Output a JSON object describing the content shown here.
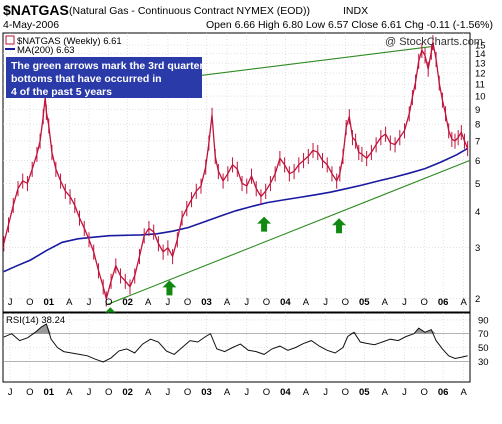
{
  "header": {
    "symbol": "$NATGAS",
    "description": "(Natural Gas - Continuous Contract NYMEX (EOD))",
    "exchange": "INDX",
    "date": "4-May-2006",
    "ohlc": "Open 6.66  High 6.80  Low 6.57  Close 6.61  Chg -0.11 (-1.56%)",
    "chg_marker": "▼",
    "watermark": "@ StockCharts.com"
  },
  "legend": {
    "price_label": "$NATGAS (Weekly) 6.61",
    "ma_label": "MA(200) 6.63",
    "rsi_label": "RSI(14) 38.24"
  },
  "annotation": "The green arrows mark the 3rd quarter bottoms that have occurred in 4 of the past 5 years",
  "colors": {
    "price": "#c0143c",
    "ma": "#1a1aa0",
    "trend": "#2e8b22",
    "arrow": "#118811",
    "note_bg": "#2a3aa8",
    "rsi_line": "#111111",
    "rsi_fill": "#9a9a9a"
  },
  "chart_data": [
    {
      "type": "line",
      "panel": "price",
      "y_scale": "log",
      "ylim": [
        1.8,
        16.5
      ],
      "y_ticks": [
        2,
        3,
        4,
        5,
        6,
        7,
        8,
        9,
        10,
        11,
        12,
        13,
        14,
        15
      ],
      "x_range": [
        2000.45,
        2006.37
      ],
      "x_ticks": [
        {
          "x": 2000.54,
          "label": "J"
        },
        {
          "x": 2000.79,
          "label": "O"
        },
        {
          "x": 2001.03,
          "label": "01",
          "bold": true
        },
        {
          "x": 2001.29,
          "label": "A"
        },
        {
          "x": 2001.54,
          "label": "J"
        },
        {
          "x": 2001.79,
          "label": "O"
        },
        {
          "x": 2002.03,
          "label": "02",
          "bold": true
        },
        {
          "x": 2002.29,
          "label": "A"
        },
        {
          "x": 2002.54,
          "label": "J"
        },
        {
          "x": 2002.79,
          "label": "O"
        },
        {
          "x": 2003.03,
          "label": "03",
          "bold": true
        },
        {
          "x": 2003.29,
          "label": "A"
        },
        {
          "x": 2003.54,
          "label": "J"
        },
        {
          "x": 2003.79,
          "label": "O"
        },
        {
          "x": 2004.03,
          "label": "04",
          "bold": true
        },
        {
          "x": 2004.29,
          "label": "A"
        },
        {
          "x": 2004.54,
          "label": "J"
        },
        {
          "x": 2004.79,
          "label": "O"
        },
        {
          "x": 2005.03,
          "label": "05",
          "bold": true
        },
        {
          "x": 2005.29,
          "label": "A"
        },
        {
          "x": 2005.54,
          "label": "J"
        },
        {
          "x": 2005.79,
          "label": "O"
        },
        {
          "x": 2006.03,
          "label": "06",
          "bold": true
        },
        {
          "x": 2006.29,
          "label": "A"
        }
      ],
      "series": [
        {
          "name": "$NATGAS (Weekly)",
          "x": [
            2000.46,
            2000.52,
            2000.58,
            2000.64,
            2000.7,
            2000.76,
            2000.82,
            2000.88,
            2000.92,
            2000.96,
            2000.985,
            2001.0,
            2001.03,
            2001.07,
            2001.12,
            2001.18,
            2001.24,
            2001.3,
            2001.36,
            2001.42,
            2001.48,
            2001.54,
            2001.6,
            2001.66,
            2001.72,
            2001.76,
            2001.82,
            2001.88,
            2001.94,
            2002.0,
            2002.06,
            2002.12,
            2002.18,
            2002.24,
            2002.3,
            2002.36,
            2002.42,
            2002.48,
            2002.54,
            2002.6,
            2002.66,
            2002.72,
            2002.78,
            2002.84,
            2002.9,
            2002.96,
            2003.02,
            2003.06,
            2003.1,
            2003.14,
            2003.18,
            2003.24,
            2003.3,
            2003.36,
            2003.42,
            2003.48,
            2003.54,
            2003.6,
            2003.66,
            2003.72,
            2003.78,
            2003.84,
            2003.9,
            2003.96,
            2004.02,
            2004.08,
            2004.14,
            2004.2,
            2004.26,
            2004.32,
            2004.38,
            2004.44,
            2004.5,
            2004.56,
            2004.62,
            2004.68,
            2004.72,
            2004.76,
            2004.8,
            2004.84,
            2004.88,
            2004.92,
            2004.96,
            2005.0,
            2005.06,
            2005.12,
            2005.18,
            2005.24,
            2005.3,
            2005.36,
            2005.42,
            2005.48,
            2005.54,
            2005.6,
            2005.64,
            2005.68,
            2005.72,
            2005.76,
            2005.8,
            2005.84,
            2005.88,
            2005.9,
            2005.94,
            2005.98,
            2006.02,
            2006.06,
            2006.1,
            2006.14,
            2006.18,
            2006.22,
            2006.26,
            2006.3,
            2006.34
          ],
          "values": [
            3.1,
            3.6,
            4.2,
            4.8,
            5.1,
            5.0,
            5.6,
            6.3,
            7.0,
            8.5,
            9.9,
            8.8,
            7.9,
            6.4,
            5.6,
            5.1,
            4.7,
            4.5,
            4.2,
            3.8,
            3.5,
            3.2,
            2.9,
            2.5,
            2.2,
            2.0,
            2.3,
            2.6,
            2.4,
            2.3,
            2.2,
            2.4,
            2.8,
            3.3,
            3.5,
            3.4,
            3.1,
            2.9,
            3.0,
            2.8,
            3.2,
            3.8,
            4.1,
            4.4,
            4.7,
            4.9,
            5.7,
            6.9,
            8.6,
            6.2,
            5.5,
            5.1,
            5.4,
            5.8,
            5.6,
            5.0,
            4.9,
            5.3,
            4.8,
            4.5,
            4.7,
            5.0,
            5.4,
            6.1,
            5.8,
            5.4,
            5.5,
            5.8,
            6.0,
            6.2,
            6.5,
            6.4,
            6.0,
            5.8,
            5.4,
            5.1,
            5.4,
            6.2,
            7.8,
            8.5,
            7.2,
            7.0,
            6.4,
            6.3,
            6.1,
            6.4,
            6.8,
            7.2,
            7.4,
            6.9,
            6.8,
            7.2,
            7.6,
            8.7,
            9.9,
            11.2,
            13.2,
            14.4,
            13.8,
            12.4,
            14.2,
            15.3,
            13.4,
            11.1,
            9.7,
            8.7,
            7.6,
            7.1,
            7.0,
            7.2,
            7.5,
            7.0,
            6.6
          ]
        },
        {
          "name": "MA(200)",
          "x": [
            2000.46,
            2000.6,
            2000.8,
            2001.0,
            2001.2,
            2001.4,
            2001.6,
            2001.8,
            2002.0,
            2002.2,
            2002.4,
            2002.6,
            2002.8,
            2003.0,
            2003.2,
            2003.4,
            2003.6,
            2003.8,
            2004.0,
            2004.2,
            2004.4,
            2004.6,
            2004.8,
            2005.0,
            2005.2,
            2005.4,
            2005.6,
            2005.8,
            2006.0,
            2006.2,
            2006.34
          ],
          "values": [
            2.48,
            2.58,
            2.72,
            2.93,
            3.13,
            3.22,
            3.26,
            3.3,
            3.31,
            3.32,
            3.35,
            3.42,
            3.52,
            3.68,
            3.85,
            4.02,
            4.16,
            4.29,
            4.38,
            4.47,
            4.56,
            4.66,
            4.79,
            4.93,
            5.09,
            5.24,
            5.42,
            5.62,
            5.92,
            6.27,
            6.6
          ]
        },
        {
          "name": "Upper trendline",
          "x": [
            2001.0,
            2005.87
          ],
          "values": [
            10.1,
            14.8
          ]
        },
        {
          "name": "Lower trendline",
          "x": [
            2001.75,
            2006.37
          ],
          "values": [
            1.9,
            6.0
          ]
        }
      ],
      "annotations": [
        {
          "type": "arrow_up",
          "x": 2001.81,
          "y": 1.9
        },
        {
          "type": "arrow_up",
          "x": 2002.56,
          "y": 2.35
        },
        {
          "type": "arrow_up",
          "x": 2003.76,
          "y": 3.9
        },
        {
          "type": "arrow_up",
          "x": 2004.71,
          "y": 3.85
        }
      ]
    },
    {
      "type": "area",
      "panel": "rsi",
      "ylim": [
        0,
        100
      ],
      "y_ticks": [
        30,
        50,
        70,
        90
      ],
      "reference_lines": [
        30,
        70
      ],
      "series": [
        {
          "name": "RSI(14)",
          "x": [
            2000.46,
            2000.56,
            2000.66,
            2000.76,
            2000.86,
            2000.94,
            2001.0,
            2001.06,
            2001.14,
            2001.22,
            2001.32,
            2001.42,
            2001.52,
            2001.62,
            2001.72,
            2001.82,
            2001.92,
            2002.02,
            2002.12,
            2002.22,
            2002.32,
            2002.42,
            2002.52,
            2002.62,
            2002.72,
            2002.82,
            2002.92,
            2003.02,
            2003.08,
            2003.16,
            2003.26,
            2003.36,
            2003.46,
            2003.56,
            2003.66,
            2003.76,
            2003.86,
            2003.96,
            2004.06,
            2004.16,
            2004.26,
            2004.36,
            2004.46,
            2004.56,
            2004.66,
            2004.76,
            2004.82,
            2004.9,
            2004.98,
            2005.06,
            2005.16,
            2005.26,
            2005.36,
            2005.46,
            2005.56,
            2005.66,
            2005.72,
            2005.8,
            2005.88,
            2005.94,
            2006.02,
            2006.1,
            2006.18,
            2006.26,
            2006.34
          ],
          "values": [
            65,
            70,
            60,
            64,
            72,
            80,
            84,
            62,
            50,
            44,
            42,
            40,
            38,
            33,
            29,
            35,
            45,
            48,
            42,
            55,
            62,
            58,
            45,
            40,
            50,
            60,
            58,
            66,
            70,
            48,
            44,
            50,
            55,
            46,
            44,
            40,
            48,
            52,
            46,
            50,
            56,
            60,
            52,
            46,
            42,
            50,
            66,
            72,
            58,
            56,
            54,
            58,
            62,
            60,
            66,
            70,
            78,
            72,
            76,
            60,
            48,
            38,
            34,
            36,
            38
          ]
        }
      ]
    }
  ]
}
